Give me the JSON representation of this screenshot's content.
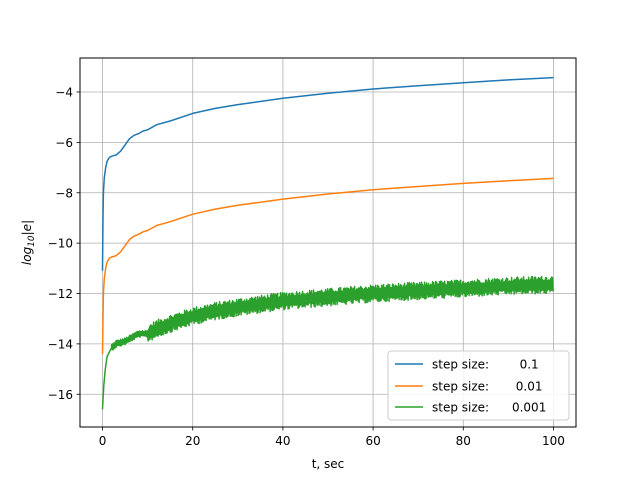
{
  "chart_data": {
    "type": "line",
    "title": "",
    "xlabel": "t, sec",
    "ylabel_base": "log",
    "ylabel_sub": "10",
    "ylabel_tail": "|e|",
    "xlim": [
      -5,
      105
    ],
    "ylim": [
      -17.3,
      -2.65
    ],
    "xticks": [
      0,
      20,
      40,
      60,
      80,
      100
    ],
    "xtick_labels": [
      "0",
      "20",
      "40",
      "60",
      "80",
      "100"
    ],
    "yticks": [
      -16,
      -14,
      -12,
      -10,
      -8,
      -6,
      -4
    ],
    "ytick_labels": [
      "−16",
      "−14",
      "−12",
      "−10",
      "−8",
      "−6",
      "−4"
    ],
    "grid": true,
    "legend_position": "lower-right",
    "series": [
      {
        "name": "step size:        0.1",
        "color": "#1f77b4",
        "noise_band": 0,
        "points": [
          [
            0,
            -11.1
          ],
          [
            0.1,
            -9.0
          ],
          [
            0.2,
            -8.0
          ],
          [
            0.4,
            -7.4
          ],
          [
            0.7,
            -7.0
          ],
          [
            1,
            -6.75
          ],
          [
            1.5,
            -6.6
          ],
          [
            2,
            -6.55
          ],
          [
            3,
            -6.5
          ],
          [
            4,
            -6.35
          ],
          [
            5,
            -6.1
          ],
          [
            6,
            -5.85
          ],
          [
            7,
            -5.72
          ],
          [
            8,
            -5.65
          ],
          [
            9,
            -5.55
          ],
          [
            10,
            -5.5
          ],
          [
            12,
            -5.3
          ],
          [
            15,
            -5.15
          ],
          [
            20,
            -4.85
          ],
          [
            25,
            -4.65
          ],
          [
            30,
            -4.5
          ],
          [
            40,
            -4.25
          ],
          [
            50,
            -4.05
          ],
          [
            60,
            -3.88
          ],
          [
            70,
            -3.75
          ],
          [
            80,
            -3.63
          ],
          [
            90,
            -3.52
          ],
          [
            100,
            -3.43
          ]
        ]
      },
      {
        "name": "step size:       0.01",
        "color": "#ff7f0e",
        "noise_band": 0,
        "points": [
          [
            0,
            -14.4
          ],
          [
            0.1,
            -13.0
          ],
          [
            0.2,
            -12.0
          ],
          [
            0.4,
            -11.4
          ],
          [
            0.7,
            -11.0
          ],
          [
            1,
            -10.75
          ],
          [
            1.5,
            -10.6
          ],
          [
            2,
            -10.55
          ],
          [
            3,
            -10.5
          ],
          [
            4,
            -10.35
          ],
          [
            5,
            -10.1
          ],
          [
            6,
            -9.85
          ],
          [
            7,
            -9.72
          ],
          [
            8,
            -9.65
          ],
          [
            9,
            -9.55
          ],
          [
            10,
            -9.5
          ],
          [
            12,
            -9.3
          ],
          [
            15,
            -9.15
          ],
          [
            20,
            -8.85
          ],
          [
            25,
            -8.65
          ],
          [
            30,
            -8.5
          ],
          [
            40,
            -8.25
          ],
          [
            50,
            -8.05
          ],
          [
            60,
            -7.88
          ],
          [
            70,
            -7.75
          ],
          [
            80,
            -7.63
          ],
          [
            90,
            -7.52
          ],
          [
            100,
            -7.43
          ]
        ]
      },
      {
        "name": "step size:      0.001",
        "color": "#2ca02c",
        "noise_band": 0.35,
        "points": [
          [
            0,
            -16.6
          ],
          [
            0.1,
            -16.2
          ],
          [
            0.3,
            -15.6
          ],
          [
            0.6,
            -15.0
          ],
          [
            1,
            -14.5
          ],
          [
            2,
            -14.15
          ],
          [
            3,
            -14.0
          ],
          [
            5,
            -13.9
          ],
          [
            7,
            -13.7
          ],
          [
            8,
            -13.6
          ],
          [
            10,
            -13.6
          ],
          [
            12,
            -13.4
          ],
          [
            15,
            -13.2
          ],
          [
            20,
            -12.9
          ],
          [
            25,
            -12.7
          ],
          [
            30,
            -12.55
          ],
          [
            40,
            -12.3
          ],
          [
            50,
            -12.15
          ],
          [
            60,
            -12.0
          ],
          [
            70,
            -11.9
          ],
          [
            80,
            -11.8
          ],
          [
            90,
            -11.7
          ],
          [
            100,
            -11.65
          ]
        ]
      }
    ]
  }
}
